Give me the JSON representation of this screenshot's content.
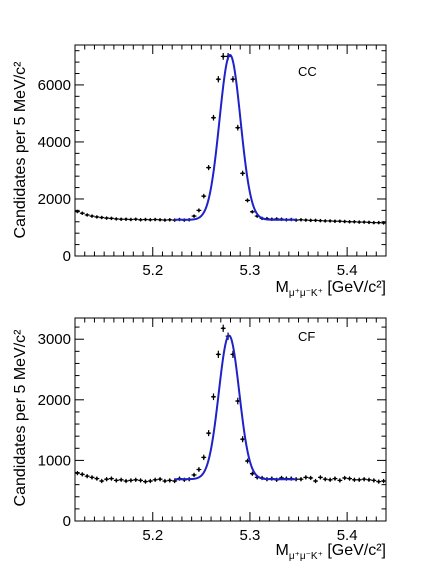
{
  "chart_data": [
    {
      "type": "scatter",
      "panel_label": "CC",
      "xlabel_main": "M",
      "xlabel_sub": "μ⁺μ⁻K⁺",
      "xlabel_unit": " [GeV/c²]",
      "ylabel": "Candidates per 5 MeV/c²",
      "xlim": [
        5.12,
        5.44
      ],
      "ylim": [
        0,
        7400
      ],
      "x_ticks": [
        5.2,
        5.3,
        5.4
      ],
      "x_tick_labels": [
        "5.2",
        "5.3",
        "5.4"
      ],
      "y_ticks": [
        0,
        2000,
        4000,
        6000
      ],
      "y_tick_labels": [
        "0",
        "2000",
        "4000",
        "6000"
      ],
      "grid": false,
      "series": [
        {
          "kind": "data_points",
          "color": "#000000",
          "x": [
            5.1225,
            5.1275,
            5.1325,
            5.1375,
            5.1425,
            5.1475,
            5.1525,
            5.1575,
            5.1625,
            5.1675,
            5.1725,
            5.1775,
            5.1825,
            5.1875,
            5.1925,
            5.1975,
            5.2025,
            5.2075,
            5.2125,
            5.2175,
            5.2225,
            5.2275,
            5.2325,
            5.2375,
            5.2425,
            5.2475,
            5.2525,
            5.2575,
            5.2625,
            5.2675,
            5.2725,
            5.2775,
            5.2825,
            5.2875,
            5.2925,
            5.2975,
            5.3025,
            5.3075,
            5.3125,
            5.3175,
            5.3225,
            5.3275,
            5.3325,
            5.3375,
            5.3425,
            5.3475,
            5.3525,
            5.3575,
            5.3625,
            5.3675,
            5.3725,
            5.3775,
            5.3825,
            5.3875,
            5.3925,
            5.3975,
            5.4025,
            5.4075,
            5.4125,
            5.4175,
            5.4225,
            5.4275,
            5.4325,
            5.4375
          ],
          "y": [
            1560,
            1500,
            1440,
            1400,
            1370,
            1350,
            1330,
            1320,
            1300,
            1290,
            1290,
            1280,
            1290,
            1270,
            1280,
            1270,
            1280,
            1270,
            1260,
            1270,
            1260,
            1280,
            1260,
            1270,
            1400,
            1600,
            2100,
            3100,
            4850,
            6200,
            7000,
            7000,
            6200,
            4500,
            2900,
            1950,
            1550,
            1400,
            1320,
            1310,
            1290,
            1300,
            1290,
            1270,
            1280,
            1260,
            1270,
            1260,
            1250,
            1250,
            1240,
            1230,
            1230,
            1220,
            1220,
            1210,
            1200,
            1200,
            1190,
            1190,
            1180,
            1170,
            1170,
            1160
          ],
          "y_err": [
            60,
            60,
            60,
            60,
            60,
            60,
            60,
            60,
            60,
            60,
            60,
            60,
            60,
            60,
            60,
            60,
            60,
            60,
            60,
            60,
            60,
            60,
            60,
            60,
            60,
            70,
            80,
            90,
            100,
            110,
            120,
            120,
            110,
            100,
            90,
            70,
            60,
            60,
            60,
            60,
            60,
            60,
            60,
            60,
            60,
            60,
            60,
            60,
            60,
            60,
            60,
            60,
            60,
            60,
            60,
            60,
            60,
            60,
            60,
            60,
            60,
            60,
            60,
            60
          ]
        },
        {
          "kind": "fit_curve",
          "color": "#1f22c8",
          "x_range": [
            5.222,
            5.348
          ],
          "background": 1270,
          "peak_amplitude": 5780,
          "peak_mean": 5.2795,
          "peak_sigma": 0.0108
        }
      ]
    },
    {
      "type": "scatter",
      "panel_label": "CF",
      "xlabel_main": "M",
      "xlabel_sub": "μ⁺μ⁻K⁺",
      "xlabel_unit": " [GeV/c²]",
      "ylabel": "Candidates per 5 MeV/c²",
      "xlim": [
        5.12,
        5.44
      ],
      "ylim": [
        0,
        3350
      ],
      "x_ticks": [
        5.2,
        5.3,
        5.4
      ],
      "x_tick_labels": [
        "5.2",
        "5.3",
        "5.4"
      ],
      "y_ticks": [
        0,
        1000,
        2000,
        3000
      ],
      "y_tick_labels": [
        "0",
        "1000",
        "2000",
        "3000"
      ],
      "grid": false,
      "series": [
        {
          "kind": "data_points",
          "color": "#000000",
          "x": [
            5.1225,
            5.1275,
            5.1325,
            5.1375,
            5.1425,
            5.1475,
            5.1525,
            5.1575,
            5.1625,
            5.1675,
            5.1725,
            5.1775,
            5.1825,
            5.1875,
            5.1925,
            5.1975,
            5.2025,
            5.2075,
            5.2125,
            5.2175,
            5.2225,
            5.2275,
            5.2325,
            5.2375,
            5.2425,
            5.2475,
            5.2525,
            5.2575,
            5.2625,
            5.2675,
            5.2725,
            5.2775,
            5.2825,
            5.2875,
            5.2925,
            5.2975,
            5.3025,
            5.3075,
            5.3125,
            5.3175,
            5.3225,
            5.3275,
            5.3325,
            5.3375,
            5.3425,
            5.3475,
            5.3525,
            5.3575,
            5.3625,
            5.3675,
            5.3725,
            5.3775,
            5.3825,
            5.3875,
            5.3925,
            5.3975,
            5.4025,
            5.4075,
            5.4125,
            5.4175,
            5.4225,
            5.4275,
            5.4325,
            5.4375
          ],
          "y": [
            790,
            770,
            740,
            720,
            700,
            660,
            690,
            700,
            670,
            680,
            660,
            670,
            680,
            670,
            650,
            660,
            680,
            690,
            660,
            670,
            660,
            700,
            680,
            690,
            760,
            850,
            1050,
            1450,
            2050,
            2750,
            3180,
            3050,
            2750,
            1980,
            1350,
            990,
            780,
            720,
            710,
            690,
            700,
            680,
            710,
            700,
            700,
            690,
            690,
            720,
            710,
            660,
            720,
            690,
            680,
            700,
            670,
            710,
            700,
            680,
            680,
            690,
            680,
            670,
            650,
            660
          ],
          "y_err": [
            35,
            35,
            35,
            35,
            35,
            35,
            35,
            35,
            35,
            35,
            35,
            35,
            35,
            35,
            35,
            35,
            35,
            35,
            35,
            35,
            35,
            35,
            35,
            35,
            35,
            40,
            45,
            50,
            55,
            60,
            60,
            60,
            60,
            55,
            50,
            40,
            35,
            35,
            35,
            35,
            35,
            35,
            35,
            35,
            35,
            35,
            35,
            35,
            35,
            35,
            35,
            35,
            35,
            35,
            35,
            35,
            35,
            35,
            35,
            35,
            35,
            35,
            35,
            35
          ]
        },
        {
          "kind": "fit_curve",
          "color": "#1f22c8",
          "x_range": [
            5.222,
            5.348
          ],
          "background": 690,
          "peak_amplitude": 2370,
          "peak_mean": 5.2785,
          "peak_sigma": 0.0105
        }
      ]
    }
  ]
}
